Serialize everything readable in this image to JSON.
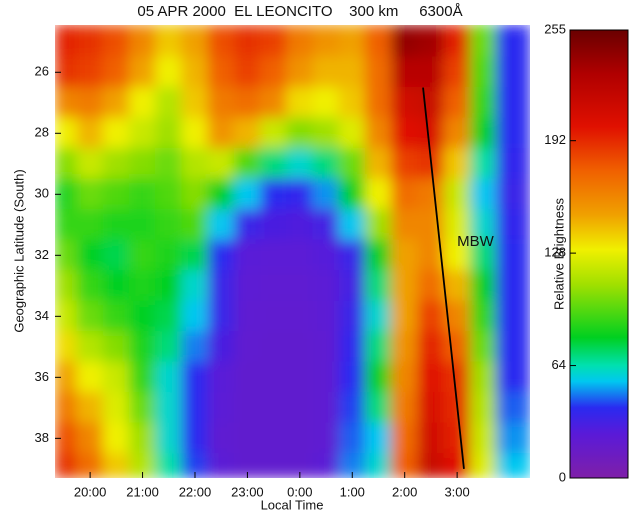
{
  "chart_data": {
    "type": "heatmap",
    "title": "05 APR 2000  EL LEONCITO    300 km     6300Å",
    "x_label": "Local Time",
    "y_label": "Geographic Latitude (South)",
    "colorbar_label": "Relative Brightness",
    "xlim": [
      19.33,
      28.39
    ],
    "ylim": [
      24.45,
      39.3
    ],
    "xticks": [
      {
        "value": 20,
        "label": "20:00"
      },
      {
        "value": 21,
        "label": "21:00"
      },
      {
        "value": 22,
        "label": "22:00"
      },
      {
        "value": 23,
        "label": "23:00"
      },
      {
        "value": 24,
        "label": "0:00"
      },
      {
        "value": 25,
        "label": "1:00"
      },
      {
        "value": 26,
        "label": "2:00"
      },
      {
        "value": 27,
        "label": "3:00"
      }
    ],
    "yticks": [
      26,
      28,
      30,
      32,
      34,
      36,
      38
    ],
    "clim": [
      0,
      255
    ],
    "cticks": [
      0,
      64,
      128,
      192,
      255
    ],
    "colorscale": [
      [
        0,
        "#7f1fa8"
      ],
      [
        25,
        "#5a1ad8"
      ],
      [
        40,
        "#2a2af0"
      ],
      [
        55,
        "#00c8f0"
      ],
      [
        64,
        "#00e0b0"
      ],
      [
        80,
        "#00d020"
      ],
      [
        110,
        "#a0e000"
      ],
      [
        130,
        "#f0f000"
      ],
      [
        150,
        "#f0a000"
      ],
      [
        175,
        "#f06000"
      ],
      [
        200,
        "#e01000"
      ],
      [
        230,
        "#b00000"
      ],
      [
        255,
        "#6a0000"
      ]
    ],
    "x": [
      19.5,
      20,
      20.5,
      21,
      21.5,
      22,
      22.5,
      23,
      23.5,
      24,
      24.5,
      25,
      25.5,
      26,
      26.5,
      27,
      27.5,
      28
    ],
    "y": [
      25,
      26,
      27,
      28,
      29,
      30,
      31,
      32,
      33,
      34,
      35,
      36,
      37,
      38,
      39
    ],
    "z": [
      [
        195,
        190,
        180,
        160,
        140,
        150,
        180,
        190,
        185,
        165,
        155,
        150,
        175,
        240,
        235,
        195,
        100,
        40
      ],
      [
        190,
        185,
        175,
        150,
        130,
        145,
        175,
        185,
        175,
        155,
        145,
        145,
        170,
        225,
        225,
        185,
        95,
        40
      ],
      [
        160,
        165,
        150,
        130,
        115,
        140,
        165,
        170,
        160,
        135,
        130,
        140,
        170,
        210,
        215,
        175,
        90,
        40
      ],
      [
        130,
        145,
        130,
        120,
        110,
        130,
        155,
        145,
        120,
        105,
        110,
        125,
        160,
        200,
        205,
        160,
        80,
        40
      ],
      [
        105,
        120,
        110,
        105,
        100,
        115,
        120,
        95,
        70,
        60,
        70,
        100,
        145,
        185,
        190,
        140,
        65,
        38
      ],
      [
        85,
        100,
        95,
        90,
        95,
        105,
        80,
        55,
        40,
        38,
        50,
        80,
        130,
        170,
        165,
        120,
        55,
        35
      ],
      [
        90,
        90,
        85,
        85,
        90,
        95,
        55,
        35,
        30,
        28,
        32,
        55,
        110,
        160,
        160,
        125,
        60,
        38
      ],
      [
        100,
        80,
        75,
        90,
        85,
        75,
        40,
        25,
        24,
        24,
        26,
        35,
        80,
        150,
        160,
        130,
        70,
        40
      ],
      [
        110,
        90,
        80,
        85,
        80,
        60,
        35,
        23,
        22,
        22,
        24,
        32,
        70,
        150,
        170,
        145,
        80,
        40
      ],
      [
        120,
        100,
        90,
        80,
        75,
        55,
        35,
        22,
        21,
        21,
        23,
        35,
        60,
        150,
        185,
        160,
        90,
        40
      ],
      [
        135,
        115,
        105,
        85,
        70,
        48,
        30,
        21,
        20,
        20,
        22,
        38,
        70,
        155,
        195,
        175,
        100,
        40
      ],
      [
        150,
        130,
        120,
        90,
        60,
        40,
        25,
        20,
        20,
        20,
        22,
        40,
        80,
        160,
        200,
        190,
        110,
        40
      ],
      [
        165,
        145,
        125,
        100,
        60,
        40,
        24,
        20,
        20,
        20,
        22,
        42,
        70,
        165,
        205,
        192,
        115,
        45
      ],
      [
        180,
        160,
        130,
        110,
        60,
        40,
        22,
        20,
        20,
        20,
        22,
        45,
        55,
        170,
        210,
        195,
        120,
        50
      ],
      [
        190,
        170,
        140,
        115,
        65,
        42,
        24,
        20,
        20,
        20,
        24,
        48,
        60,
        175,
        215,
        200,
        125,
        55
      ]
    ],
    "annotations": [
      {
        "text": "MBW",
        "x": 27.35,
        "y": 31.56
      }
    ],
    "lines": [
      {
        "x": [
          26.35,
          27.13
        ],
        "y": [
          26.5,
          39.0
        ],
        "color": "#000000"
      }
    ]
  }
}
